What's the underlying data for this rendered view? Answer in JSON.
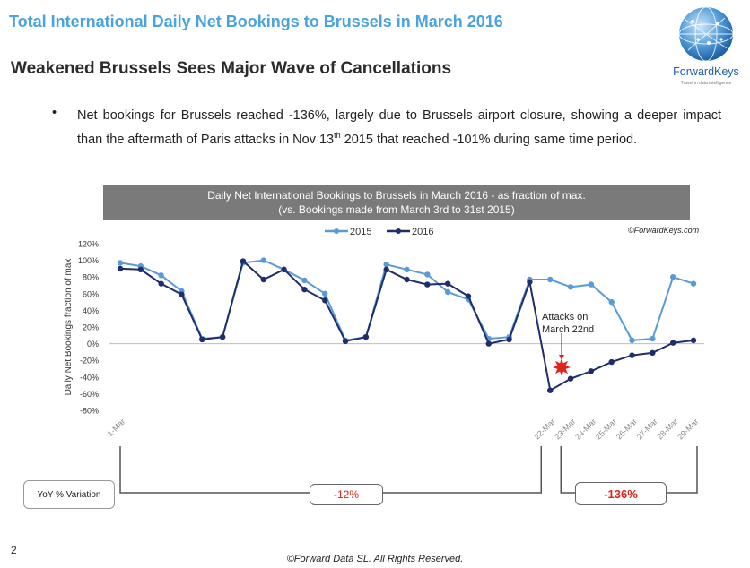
{
  "header": {
    "title": "Total International Daily Net Bookings to Brussels in March 2016",
    "subtitle": "Weakened Brussels Sees Major Wave of Cancellations",
    "logo_text": "ForwardKeys",
    "logo_tagline": "Travel in data intelligence"
  },
  "bullet": {
    "marker": "•",
    "text_before_sup": "Net bookings for Brussels reached -136%, largely due to Brussels airport closure, showing a deeper impact than the aftermath of Paris attacks in Nov 13",
    "sup": "th",
    "text_after_sup": " 2015 that reached -101% during same time period."
  },
  "chart_header": {
    "line1": "Daily Net International Bookings to Brussels in March 2016 - as fraction of max.",
    "line2": "(vs. Bookings made from March 3rd to 31st 2015)"
  },
  "source_note": "©ForwardKeys.com",
  "annotation": {
    "line1": "Attacks on",
    "line2": "March 22nd"
  },
  "yoy": {
    "label": "YoY % Variation",
    "left_value": "-12%",
    "right_value": "-136%"
  },
  "page_number": "2",
  "footer": "©Forward Data SL. All Rights Reserved.",
  "colors": {
    "s2015": "#5b9bd5",
    "s2016": "#1f2d6b",
    "title": "#4aa3df",
    "alert": "#e0231b",
    "header_bg": "#7a7a7a"
  },
  "chart_data": {
    "type": "line",
    "ylabel": "Daily Net Bookings fraction of max",
    "xlabel": "",
    "ylim": [
      -80,
      120
    ],
    "yticks": [
      120,
      100,
      80,
      60,
      40,
      20,
      0,
      -20,
      -40,
      -60,
      -80
    ],
    "ytick_labels": [
      "120%",
      "100%",
      "80%",
      "60%",
      "40%",
      "20%",
      "0%",
      "-20%",
      "-40%",
      "-60%",
      "-80%"
    ],
    "legend_position": "top",
    "day_range": [
      1,
      29
    ],
    "x_tick_days": [
      1,
      22,
      23,
      24,
      25,
      26,
      27,
      28,
      29
    ],
    "x_tick_labels": [
      "1-Mar",
      "22-Mar",
      "23-Mar",
      "24-Mar",
      "25-Mar",
      "26-Mar",
      "27-Mar",
      "28-Mar",
      "29-Mar"
    ],
    "days": [
      1,
      2,
      3,
      4,
      5,
      6,
      7,
      8,
      9,
      10,
      11,
      12,
      13,
      14,
      15,
      16,
      17,
      18,
      19,
      20,
      21,
      22,
      23,
      24,
      25,
      26,
      27,
      28,
      29
    ],
    "series": [
      {
        "name": "2015",
        "values": [
          97,
          93,
          82,
          63,
          6,
          8,
          97,
          100,
          89,
          76,
          60,
          4,
          8,
          95,
          89,
          83,
          62,
          53,
          6,
          8,
          77,
          77,
          68,
          71,
          50,
          4,
          6,
          80,
          72
        ]
      },
      {
        "name": "2016",
        "values": [
          90,
          89,
          72,
          59,
          5,
          8,
          99,
          77,
          89,
          65,
          52,
          3,
          8,
          89,
          77,
          71,
          72,
          57,
          0,
          5,
          74,
          -56,
          -42,
          -33,
          -22,
          -14,
          -11,
          1,
          4
        ]
      }
    ]
  }
}
